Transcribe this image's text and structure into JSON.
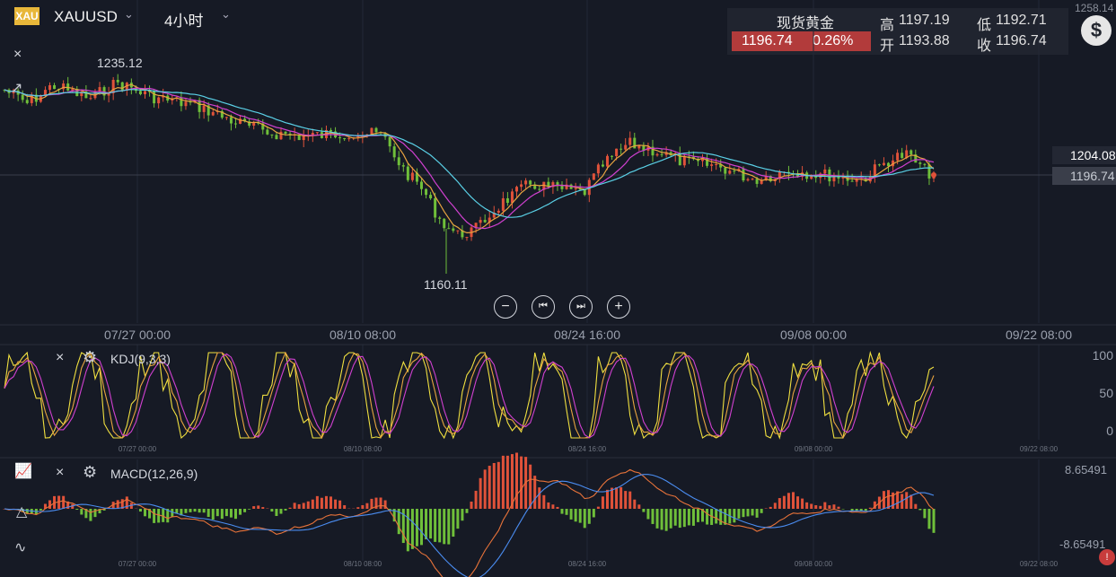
{
  "toolbar": {
    "symbol_logo": "XAU",
    "symbol": "XAUUSD",
    "timeframe": "4小时",
    "close_icon": "×"
  },
  "quote": {
    "title": "现货黄金",
    "last": "1196.74",
    "change_pct": "0.26%",
    "high_label": "高",
    "high": "1197.19",
    "low_label": "低",
    "low": "1192.71",
    "open_label": "开",
    "open": "1193.88",
    "close_label": "收",
    "close": "1196.74",
    "dollar_icon": "$"
  },
  "main_chart": {
    "y_top": "1258.14",
    "max_label": "1235.12",
    "min_label": "1160.11",
    "tag_upper": "1204.08",
    "tag_lower": "1196.74",
    "x_ticks": [
      "07/27 00:00",
      "08/10 08:00",
      "08/24 16:00",
      "09/08 00:00",
      "09/22 08:00"
    ],
    "colors": {
      "up": "#e0523a",
      "down": "#6fbf3a",
      "ma1": "#e8a440",
      "ma2": "#d040d0",
      "ma3": "#5ad0e6"
    }
  },
  "kdj": {
    "label": "KDJ(9,3,3)",
    "levels": [
      "100",
      "50",
      "0"
    ],
    "x_ticks": [
      "07/27 00:00",
      "08/10 08:00",
      "08/24 16:00",
      "09/08 00:00",
      "09/22 08:00"
    ]
  },
  "macd": {
    "label": "MACD(12,26,9)",
    "top": "8.65491",
    "bottom": "-8.65491",
    "x_ticks": [
      "07/27 00:00",
      "08/10 08:00",
      "08/24 16:00",
      "09/08 00:00",
      "09/22 08:00"
    ]
  },
  "controls": {
    "zoom_out": "−",
    "prev": "⏮",
    "next": "⏭",
    "zoom_in": "+"
  }
}
